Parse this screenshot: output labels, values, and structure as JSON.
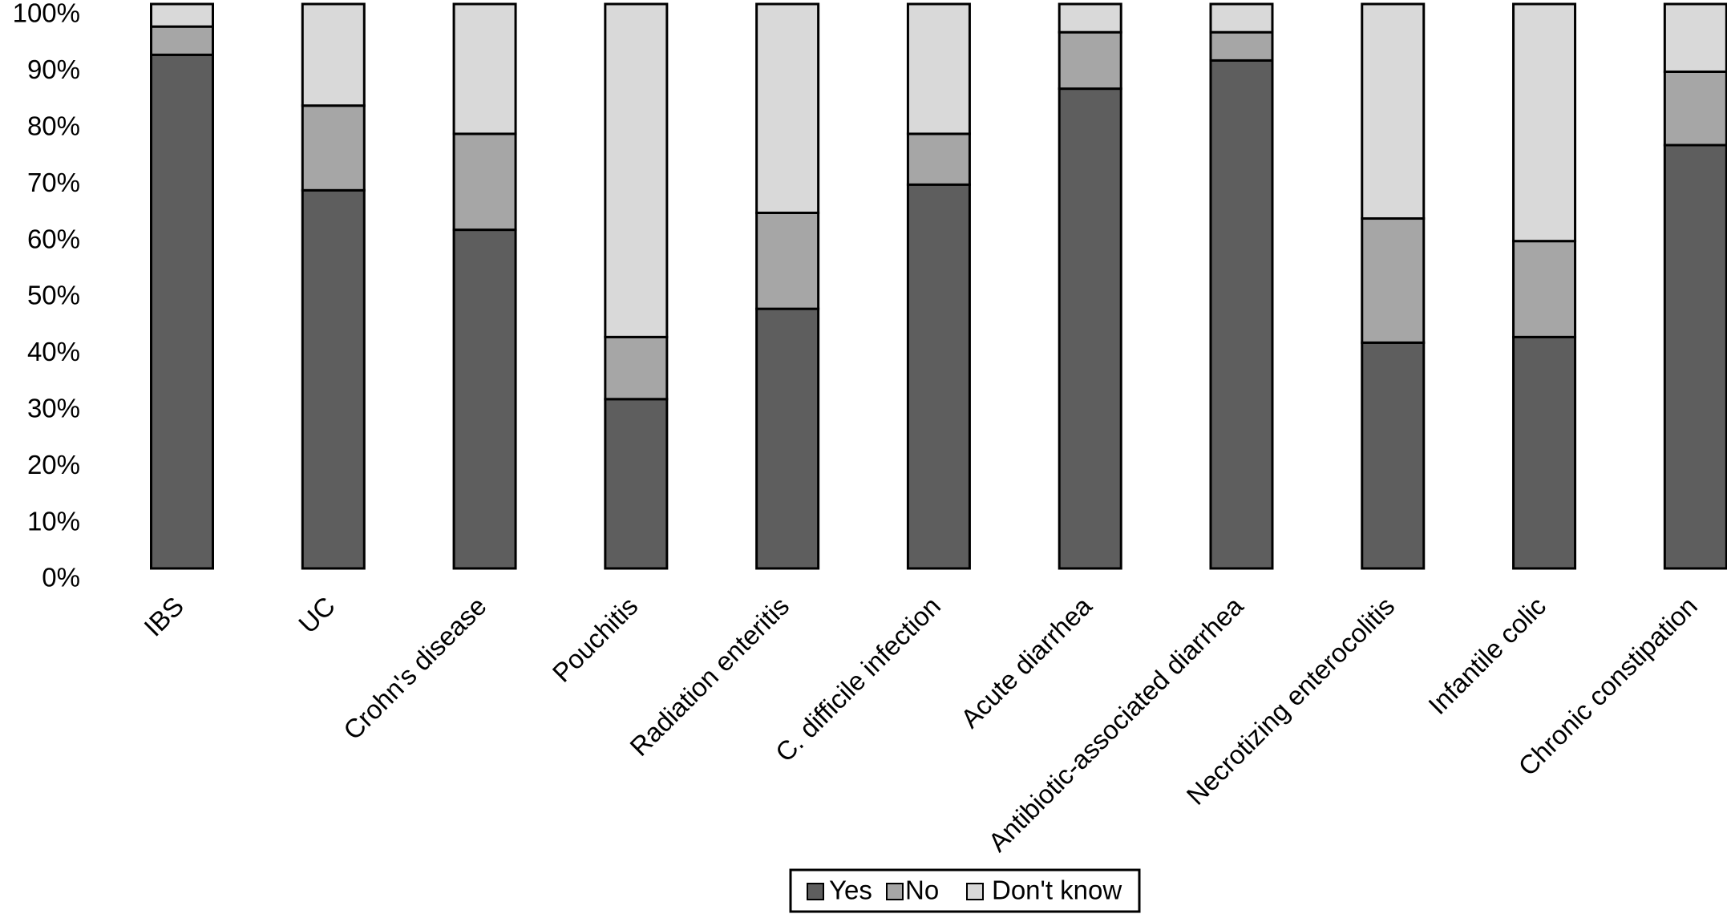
{
  "chart_data": {
    "type": "stacked_bar",
    "categories": [
      "IBS",
      "UC",
      "Crohn's disease",
      "Pouchitis",
      "Radiation enteritis",
      "C. difficile infection",
      "Acute diarrhea",
      "Antibiotic-associated diarrhea",
      "Necrotizing enterocolitis",
      "Infantile colic",
      "Chronic constipation"
    ],
    "series": [
      {
        "name": "Yes",
        "color": "#5e5e5e",
        "values": [
          91,
          67,
          60,
          30,
          46,
          68,
          85,
          90,
          40,
          41,
          75
        ]
      },
      {
        "name": "No",
        "color": "#a6a6a6",
        "values": [
          5,
          15,
          17,
          11,
          17,
          9,
          10,
          5,
          22,
          17,
          13
        ]
      },
      {
        "name": "Don't know",
        "color": "#d9d9d9",
        "values": [
          4,
          18,
          23,
          59,
          37,
          23,
          5,
          5,
          38,
          42,
          12
        ]
      }
    ],
    "ylim": [
      0,
      100
    ],
    "yticks": [
      {
        "value": 0,
        "label": "0%"
      },
      {
        "value": 10,
        "label": "10%"
      },
      {
        "value": 20,
        "label": "20%"
      },
      {
        "value": 30,
        "label": "30%"
      },
      {
        "value": 40,
        "label": "40%"
      },
      {
        "value": 50,
        "label": "50%"
      },
      {
        "value": 60,
        "label": "60%"
      },
      {
        "value": 70,
        "label": "70%"
      },
      {
        "value": 80,
        "label": "80%"
      },
      {
        "value": 90,
        "label": "90%"
      },
      {
        "value": 100,
        "label": "100%"
      }
    ],
    "legend": "bottom"
  }
}
